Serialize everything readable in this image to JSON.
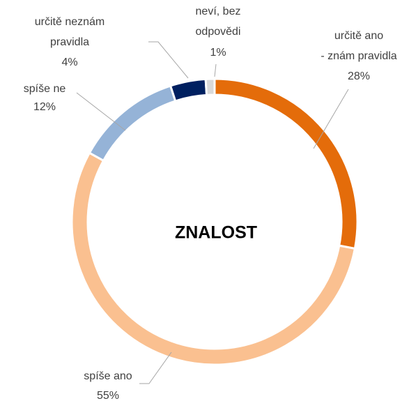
{
  "chart_data": {
    "type": "donut",
    "center_label": "ZNALOST",
    "categories": [
      "určitě ano - znám pravidla",
      "spíše ano",
      "spíše ne",
      "určitě neznám pravidla",
      "neví, bez odpovědi"
    ],
    "values": [
      28,
      55,
      12,
      4,
      1
    ],
    "value_labels": [
      "28%",
      "55%",
      "12%",
      "4%",
      "1%"
    ],
    "colors": [
      "#e46c0a",
      "#fac090",
      "#95b3d7",
      "#002060",
      "#d9d9d9"
    ]
  }
}
